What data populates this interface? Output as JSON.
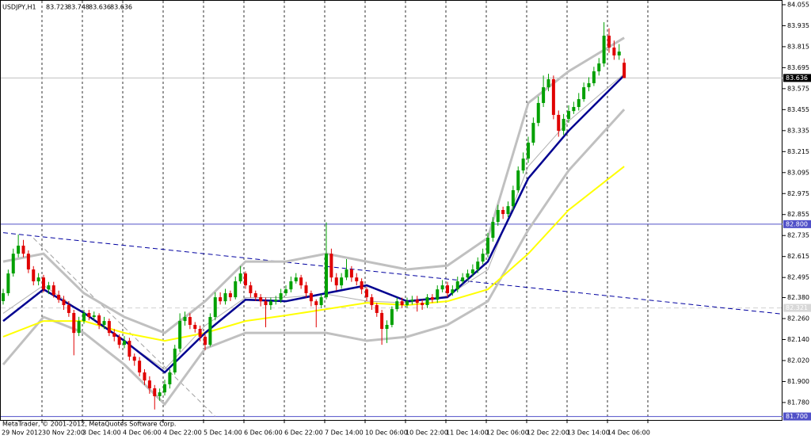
{
  "chart_data": {
    "type": "candlestick",
    "symbol": "USDJPY,H1",
    "footer": "MetaTrader, © 2001-2012, MetaQuotes Software Corp.",
    "up_color": "#00a000",
    "down_color": "#e00000",
    "ylim": [
      81.68,
      84.082
    ],
    "yticks": [
      84.055,
      83.935,
      83.815,
      83.695,
      83.575,
      83.455,
      83.335,
      83.215,
      83.095,
      82.975,
      82.855,
      82.735,
      82.615,
      82.495,
      {
        "value": 82.38,
        "label": "82.380"
      },
      {
        "value": 82.26,
        "label": "82.260"
      },
      {
        "value": 82.14,
        "label": "82.140"
      },
      {
        "value": 82.02,
        "label": "82.020"
      },
      {
        "value": 81.9,
        "label": "81.900"
      },
      {
        "value": 81.78,
        "label": "81.780"
      }
    ],
    "xlabels": [
      "29 Nov 2012",
      "30 Nov 22:00",
      "3 Dec 14:00",
      "4 Dec 06:00",
      "4 Dec 22:00",
      "5 Dec 14:00",
      "6 Dec 06:00",
      "6 Dec 22:00",
      "7 Dec 14:00",
      "10 Dec 06:00",
      "10 Dec 22:00",
      "11 Dec 14:00",
      "12 Dec 06:00",
      "12 Dec 22:00",
      "13 Dec 14:00",
      "14 Dec 06:00"
    ],
    "candles": [
      [
        82.36,
        82.43,
        82.34,
        82.405
      ],
      [
        82.405,
        82.54,
        82.39,
        82.518
      ],
      [
        82.518,
        82.66,
        82.5,
        82.631
      ],
      [
        82.631,
        82.74,
        82.61,
        82.677
      ],
      [
        82.677,
        82.71,
        82.61,
        82.631
      ],
      [
        82.631,
        82.65,
        82.52,
        82.541
      ],
      [
        82.541,
        82.56,
        82.45,
        82.473
      ],
      [
        82.473,
        82.52,
        82.45,
        82.495
      ],
      [
        82.495,
        82.51,
        82.41,
        82.427
      ],
      [
        82.427,
        82.47,
        82.4,
        82.45
      ],
      [
        82.45,
        82.47,
        82.38,
        82.396
      ],
      [
        82.396,
        82.42,
        82.35,
        82.368
      ],
      [
        82.368,
        82.39,
        82.31,
        82.337
      ],
      [
        82.337,
        82.36,
        82.27,
        82.292
      ],
      [
        82.292,
        82.31,
        82.05,
        82.178
      ],
      [
        82.178,
        82.27,
        82.16,
        82.246
      ],
      [
        82.246,
        82.31,
        82.23,
        82.292
      ],
      [
        82.292,
        82.31,
        82.25,
        82.269
      ],
      [
        82.269,
        82.3,
        82.25,
        82.278
      ],
      [
        82.278,
        82.29,
        82.2,
        82.224
      ],
      [
        82.224,
        82.27,
        82.2,
        82.246
      ],
      [
        82.246,
        82.26,
        82.16,
        82.178
      ],
      [
        82.178,
        82.2,
        82.13,
        82.156
      ],
      [
        82.156,
        82.17,
        82.09,
        82.11
      ],
      [
        82.11,
        82.16,
        82.09,
        82.133
      ],
      [
        82.133,
        82.15,
        82.02,
        82.042
      ],
      [
        82.042,
        82.06,
        81.99,
        82.019
      ],
      [
        82.019,
        82.04,
        81.93,
        81.952
      ],
      [
        81.952,
        81.97,
        81.88,
        81.906
      ],
      [
        81.906,
        81.93,
        81.83,
        81.861
      ],
      [
        81.861,
        81.88,
        81.74,
        81.816
      ],
      [
        81.816,
        81.86,
        81.79,
        81.838
      ],
      [
        81.838,
        81.91,
        81.82,
        81.884
      ],
      [
        81.884,
        81.97,
        81.86,
        81.952
      ],
      [
        81.952,
        82.11,
        81.94,
        82.088
      ],
      [
        82.088,
        82.29,
        82.07,
        82.246
      ],
      [
        82.246,
        82.3,
        82.22,
        82.269
      ],
      [
        82.269,
        82.29,
        82.2,
        82.224
      ],
      [
        82.224,
        82.24,
        82.18,
        82.201
      ],
      [
        82.201,
        82.22,
        82.13,
        82.156
      ],
      [
        82.156,
        82.17,
        82.08,
        82.11
      ],
      [
        82.11,
        82.29,
        82.1,
        82.269
      ],
      [
        82.269,
        82.41,
        82.25,
        82.382
      ],
      [
        82.382,
        82.41,
        82.34,
        82.359
      ],
      [
        82.359,
        82.43,
        82.34,
        82.405
      ],
      [
        82.405,
        82.42,
        82.36,
        82.382
      ],
      [
        82.382,
        82.5,
        82.37,
        82.473
      ],
      [
        82.473,
        82.56,
        82.46,
        82.518
      ],
      [
        82.518,
        82.53,
        82.43,
        82.45
      ],
      [
        82.45,
        82.47,
        82.38,
        82.405
      ],
      [
        82.405,
        82.42,
        82.36,
        82.382
      ],
      [
        82.382,
        82.4,
        82.33,
        82.359
      ],
      [
        82.359,
        82.38,
        82.21,
        82.337
      ],
      [
        82.337,
        82.38,
        82.31,
        82.359
      ],
      [
        82.359,
        82.39,
        82.34,
        82.368
      ],
      [
        82.368,
        82.43,
        82.35,
        82.405
      ],
      [
        82.405,
        82.45,
        82.39,
        82.427
      ],
      [
        82.427,
        82.5,
        82.41,
        82.473
      ],
      [
        82.473,
        82.52,
        82.46,
        82.495
      ],
      [
        82.495,
        82.51,
        82.43,
        82.45
      ],
      [
        82.45,
        82.47,
        82.38,
        82.405
      ],
      [
        82.405,
        82.42,
        82.33,
        82.359
      ],
      [
        82.359,
        82.37,
        82.21,
        82.337
      ],
      [
        82.337,
        82.4,
        82.32,
        82.382
      ],
      [
        82.382,
        82.81,
        82.37,
        82.631
      ],
      [
        82.631,
        82.66,
        82.47,
        82.495
      ],
      [
        82.495,
        82.52,
        82.42,
        82.45
      ],
      [
        82.45,
        82.52,
        82.43,
        82.495
      ],
      [
        82.495,
        82.6,
        82.48,
        82.541
      ],
      [
        82.541,
        82.56,
        82.47,
        82.495
      ],
      [
        82.495,
        82.52,
        82.45,
        82.473
      ],
      [
        82.473,
        82.49,
        82.4,
        82.427
      ],
      [
        82.427,
        82.44,
        82.36,
        82.382
      ],
      [
        82.382,
        82.4,
        82.31,
        82.337
      ],
      [
        82.337,
        82.35,
        82.27,
        82.292
      ],
      [
        82.292,
        82.31,
        82.11,
        82.201
      ],
      [
        82.201,
        82.25,
        82.12,
        82.224
      ],
      [
        82.224,
        82.33,
        82.21,
        82.314
      ],
      [
        82.314,
        82.38,
        82.3,
        82.359
      ],
      [
        82.359,
        82.38,
        82.32,
        82.337
      ],
      [
        82.337,
        82.38,
        82.32,
        82.359
      ],
      [
        82.359,
        82.39,
        82.34,
        82.368
      ],
      [
        82.368,
        82.39,
        82.3,
        82.35
      ],
      [
        82.35,
        82.37,
        82.31,
        82.337
      ],
      [
        82.337,
        82.4,
        82.32,
        82.382
      ],
      [
        82.382,
        82.4,
        82.35,
        82.368
      ],
      [
        82.368,
        82.45,
        82.35,
        82.427
      ],
      [
        82.427,
        82.48,
        82.41,
        82.45
      ],
      [
        82.45,
        82.47,
        82.38,
        82.405
      ],
      [
        82.405,
        82.45,
        82.39,
        82.427
      ],
      [
        82.427,
        82.5,
        82.41,
        82.473
      ],
      [
        82.473,
        82.52,
        82.46,
        82.495
      ],
      [
        82.495,
        82.54,
        82.48,
        82.518
      ],
      [
        82.518,
        82.57,
        82.5,
        82.541
      ],
      [
        82.541,
        82.61,
        82.52,
        82.586
      ],
      [
        82.586,
        82.66,
        82.57,
        82.631
      ],
      [
        82.631,
        82.75,
        82.61,
        82.722
      ],
      [
        82.722,
        82.84,
        82.7,
        82.813
      ],
      [
        82.813,
        82.91,
        82.79,
        82.881
      ],
      [
        82.881,
        82.9,
        82.83,
        82.858
      ],
      [
        82.858,
        82.93,
        82.84,
        82.903
      ],
      [
        82.903,
        83.02,
        82.88,
        82.994
      ],
      [
        82.994,
        83.13,
        82.98,
        83.107
      ],
      [
        83.107,
        83.21,
        83.09,
        83.175
      ],
      [
        83.175,
        83.3,
        83.15,
        83.266
      ],
      [
        83.266,
        83.41,
        83.25,
        83.379
      ],
      [
        83.379,
        83.53,
        83.36,
        83.493
      ],
      [
        83.493,
        83.65,
        83.47,
        83.583
      ],
      [
        83.583,
        83.66,
        83.56,
        83.629
      ],
      [
        83.629,
        83.65,
        83.4,
        83.425
      ],
      [
        83.425,
        83.45,
        83.3,
        83.334
      ],
      [
        83.334,
        83.43,
        83.31,
        83.402
      ],
      [
        83.402,
        83.48,
        83.38,
        83.447
      ],
      [
        83.447,
        83.5,
        83.43,
        83.47
      ],
      [
        83.47,
        83.55,
        83.45,
        83.515
      ],
      [
        83.515,
        83.61,
        83.5,
        83.583
      ],
      [
        83.583,
        83.64,
        83.56,
        83.606
      ],
      [
        83.606,
        83.7,
        83.59,
        83.674
      ],
      [
        83.674,
        83.75,
        83.65,
        83.719
      ],
      [
        83.719,
        83.955,
        83.7,
        83.878
      ],
      [
        83.878,
        83.92,
        83.78,
        83.81
      ],
      [
        83.81,
        83.85,
        83.74,
        83.765
      ],
      [
        83.765,
        83.83,
        83.74,
        83.787
      ],
      [
        83.723,
        83.748,
        83.636,
        83.636
      ]
    ],
    "indicator_x": [
      0,
      8,
      16,
      24,
      32,
      40,
      48,
      56,
      64,
      72,
      80,
      88,
      96,
      104,
      112,
      123
    ],
    "indicators": [
      {
        "color": "#c0c0c0",
        "width": 3,
        "values": [
          82.586,
          82.631,
          82.405,
          82.269,
          82.178,
          82.359,
          82.586,
          82.586,
          82.631,
          82.586,
          82.541,
          82.563,
          82.722,
          83.493,
          83.674,
          83.866
        ]
      },
      {
        "color": "#c0c0c0",
        "width": 3,
        "values": [
          81.997,
          82.269,
          82.178,
          81.997,
          81.77,
          82.088,
          82.178,
          82.178,
          82.178,
          82.133,
          82.156,
          82.224,
          82.359,
          82.767,
          83.107,
          83.456
        ]
      },
      {
        "color": "#b0b0b0",
        "width": 1,
        "values": [
          82.29,
          82.45,
          82.29,
          82.13,
          81.97,
          82.22,
          82.38,
          82.38,
          82.4,
          82.36,
          82.35,
          82.39,
          82.54,
          83.13,
          83.39,
          83.66
        ]
      },
      {
        "color": "#ffff00",
        "width": 2,
        "values": [
          82.156,
          82.246,
          82.246,
          82.178,
          82.133,
          82.178,
          82.246,
          82.278,
          82.314,
          82.35,
          82.337,
          82.359,
          82.427,
          82.631,
          82.881,
          83.13
        ]
      },
      {
        "color": "#000090",
        "width": 2.5,
        "values": [
          82.246,
          82.427,
          82.292,
          82.133,
          81.952,
          82.178,
          82.368,
          82.359,
          82.405,
          82.45,
          82.359,
          82.382,
          82.586,
          83.062,
          83.334,
          83.651
        ]
      }
    ],
    "trendlines": [
      {
        "color": "#0000a0",
        "x": [
          0,
          154
        ],
        "values": [
          82.751,
          82.287
        ]
      },
      {
        "color": "#a0a0a0",
        "x": [
          6,
          42
        ],
        "values": [
          82.72,
          81.7
        ]
      }
    ],
    "levels": [
      {
        "value": 82.8,
        "label": "82.800",
        "color": "#5050c8"
      },
      {
        "value": 81.7,
        "label": "81.700",
        "color": "#5050c8"
      },
      {
        "value": 83.636,
        "color": "#000000",
        "line": "#c0c0c0"
      },
      {
        "value": 82.321,
        "color": "#d8d8d8",
        "line": "#d0d0d0"
      }
    ]
  }
}
